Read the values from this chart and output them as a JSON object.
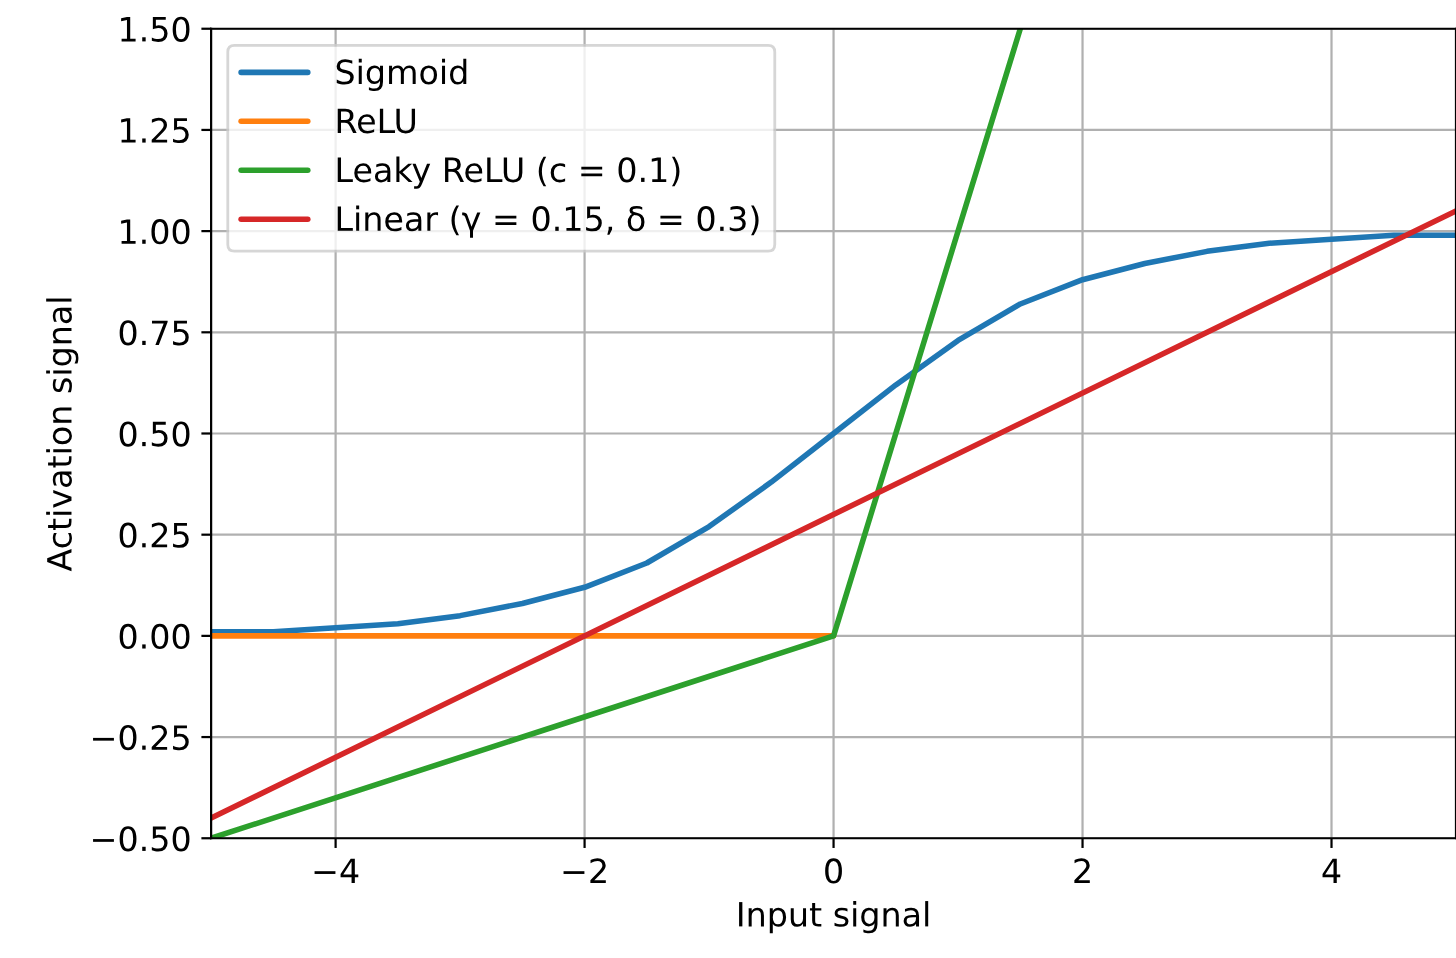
{
  "chart_data": {
    "type": "line",
    "xlabel": "Input signal",
    "ylabel": "Activation signal",
    "xlim": [
      -5,
      5
    ],
    "ylim": [
      -0.5,
      1.5
    ],
    "xticks": [
      {
        "value": -4,
        "label": "−4"
      },
      {
        "value": -2,
        "label": "−2"
      },
      0,
      2,
      4
    ],
    "yticks": [
      {
        "value": -0.5,
        "label": "−0.50"
      },
      {
        "value": -0.25,
        "label": "−0.25"
      },
      {
        "value": 0,
        "label": "0.00"
      },
      {
        "value": 0.25,
        "label": "0.25"
      },
      {
        "value": 0.5,
        "label": "0.50"
      },
      {
        "value": 0.75,
        "label": "0.75"
      },
      {
        "value": 1.0,
        "label": "1.00"
      },
      {
        "value": 1.25,
        "label": "1.25"
      },
      {
        "value": 1.5,
        "label": "1.50"
      }
    ],
    "grid": true,
    "legend": "top left",
    "series": [
      {
        "name": "Sigmoid",
        "color": "#1f77b4",
        "x": [
          -5,
          -4.5,
          -4,
          -3.5,
          -3,
          -2.5,
          -2,
          -1.5,
          -1,
          -0.5,
          0,
          0.5,
          1,
          1.5,
          2,
          2.5,
          3,
          3.5,
          4,
          4.5,
          5
        ],
        "values": [
          0.01,
          0.01,
          0.02,
          0.03,
          0.05,
          0.08,
          0.12,
          0.18,
          0.27,
          0.38,
          0.5,
          0.62,
          0.73,
          0.82,
          0.88,
          0.92,
          0.95,
          0.97,
          0.98,
          0.99,
          0.99
        ]
      },
      {
        "name": "ReLU",
        "color": "#ff7f0e",
        "x": [
          -5,
          0
        ],
        "values": [
          0,
          0
        ]
      },
      {
        "name": "Leaky ReLU (c = 0.1)",
        "color": "#2ca02c",
        "x": [
          -5,
          0,
          1.5
        ],
        "values": [
          -0.5,
          0,
          1.5
        ]
      },
      {
        "name": "Linear (γ = 0.15, δ = 0.3)",
        "color": "#d62728",
        "x": [
          -5,
          5
        ],
        "values": [
          -0.45,
          1.05
        ]
      }
    ]
  }
}
